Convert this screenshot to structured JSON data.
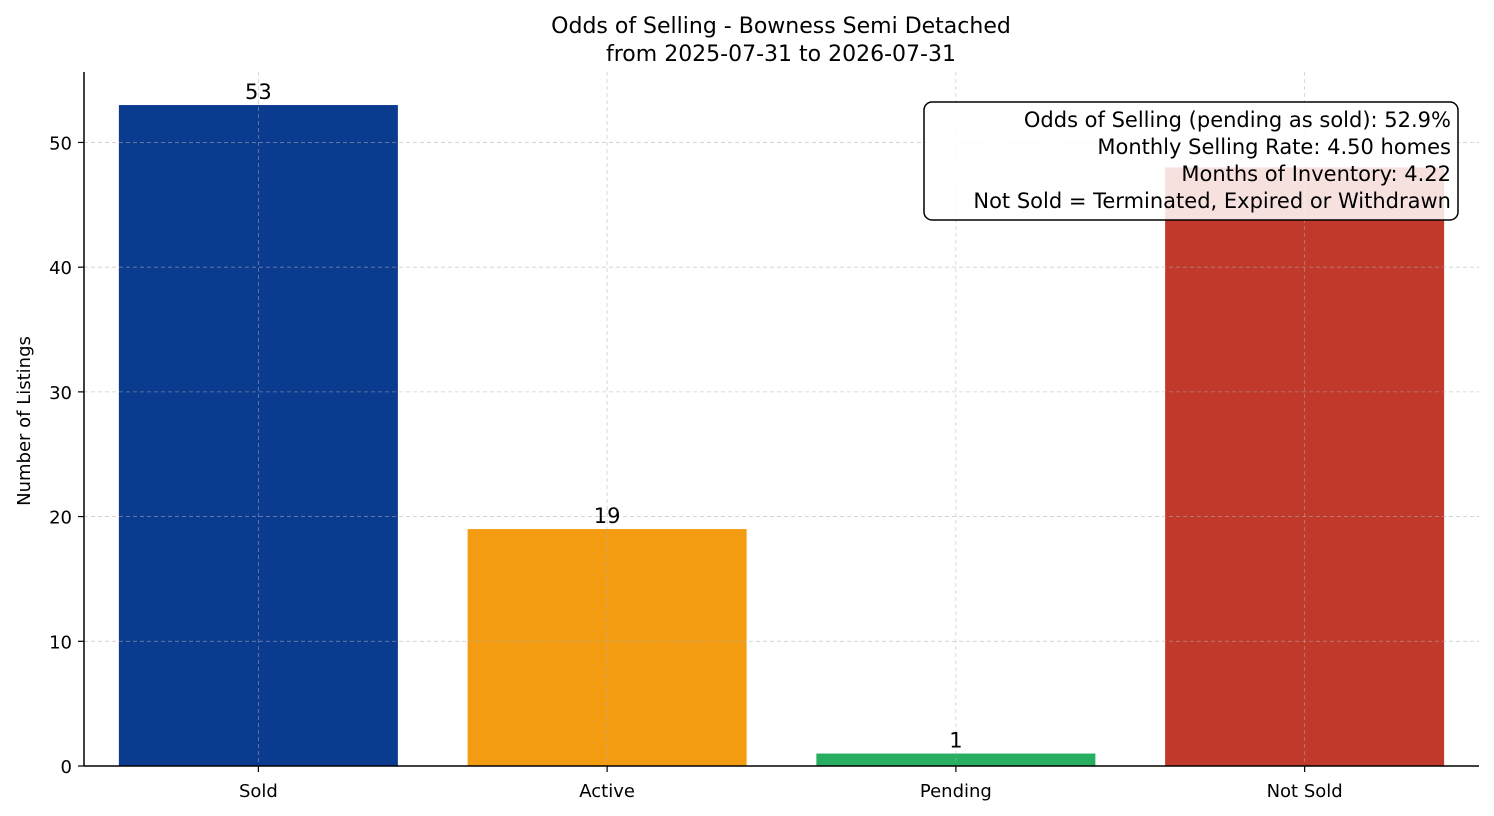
{
  "chart_data": {
    "type": "bar",
    "title": "Odds of Selling - Bowness Semi Detached",
    "subtitle": "from 2025-07-31 to 2026-07-31",
    "xlabel": "",
    "ylabel": "Number of Listings",
    "categories": [
      "Sold",
      "Active",
      "Pending",
      "Not Sold"
    ],
    "values": [
      53,
      19,
      1,
      48
    ],
    "data_labels": [
      "53",
      "19",
      "1",
      ""
    ],
    "colors": [
      "#0b3b8f",
      "#f39c12",
      "#27ae60",
      "#c0392b"
    ],
    "ylim": [
      0,
      55.65
    ],
    "yticks": [
      0,
      10,
      20,
      30,
      40,
      50
    ],
    "grid": true,
    "annotation": {
      "placement": "top-right",
      "lines": [
        "Odds of Selling (pending as sold): 52.9%",
        "Monthly Selling Rate: 4.50 homes",
        "Months of Inventory: 4.22",
        "Not Sold = Terminated, Expired or Withdrawn"
      ]
    }
  }
}
